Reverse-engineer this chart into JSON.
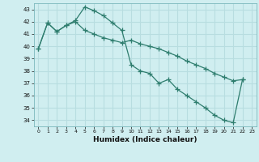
{
  "xlabel": "Humidex (Indice chaleur)",
  "bg_color": "#d0eef0",
  "grid_color": "#b8dde0",
  "line_color": "#2e7d6e",
  "xlim": [
    -0.5,
    23.5
  ],
  "ylim": [
    33.5,
    43.5
  ],
  "yticks": [
    34,
    35,
    36,
    37,
    38,
    39,
    40,
    41,
    42,
    43
  ],
  "xticks": [
    0,
    1,
    2,
    3,
    4,
    5,
    6,
    7,
    8,
    9,
    10,
    11,
    12,
    13,
    14,
    15,
    16,
    17,
    18,
    19,
    20,
    21,
    22,
    23
  ],
  "line1_x": [
    0,
    1,
    2,
    3,
    4,
    5,
    6,
    7,
    8,
    9,
    10,
    11,
    12,
    13,
    14,
    15,
    16,
    17,
    18,
    19,
    20,
    21,
    22
  ],
  "line1_y": [
    39.8,
    41.9,
    41.2,
    41.7,
    42.1,
    43.2,
    42.9,
    42.5,
    41.9,
    41.3,
    38.5,
    38.0,
    37.8,
    37.0,
    37.3,
    36.5,
    36.0,
    35.5,
    35.0,
    34.4,
    34.0,
    33.8,
    37.3
  ],
  "line2_x": [
    0,
    1,
    2,
    3,
    4,
    5,
    6,
    7,
    8,
    9,
    10,
    11,
    12,
    13,
    14,
    15,
    16,
    17,
    18,
    19,
    20,
    21,
    22
  ],
  "line2_y": [
    39.8,
    41.9,
    41.2,
    41.7,
    42.0,
    41.3,
    41.0,
    40.7,
    40.5,
    40.3,
    40.5,
    40.2,
    40.0,
    39.8,
    39.5,
    39.2,
    38.8,
    38.5,
    38.2,
    37.8,
    37.5,
    37.2,
    37.3
  ]
}
